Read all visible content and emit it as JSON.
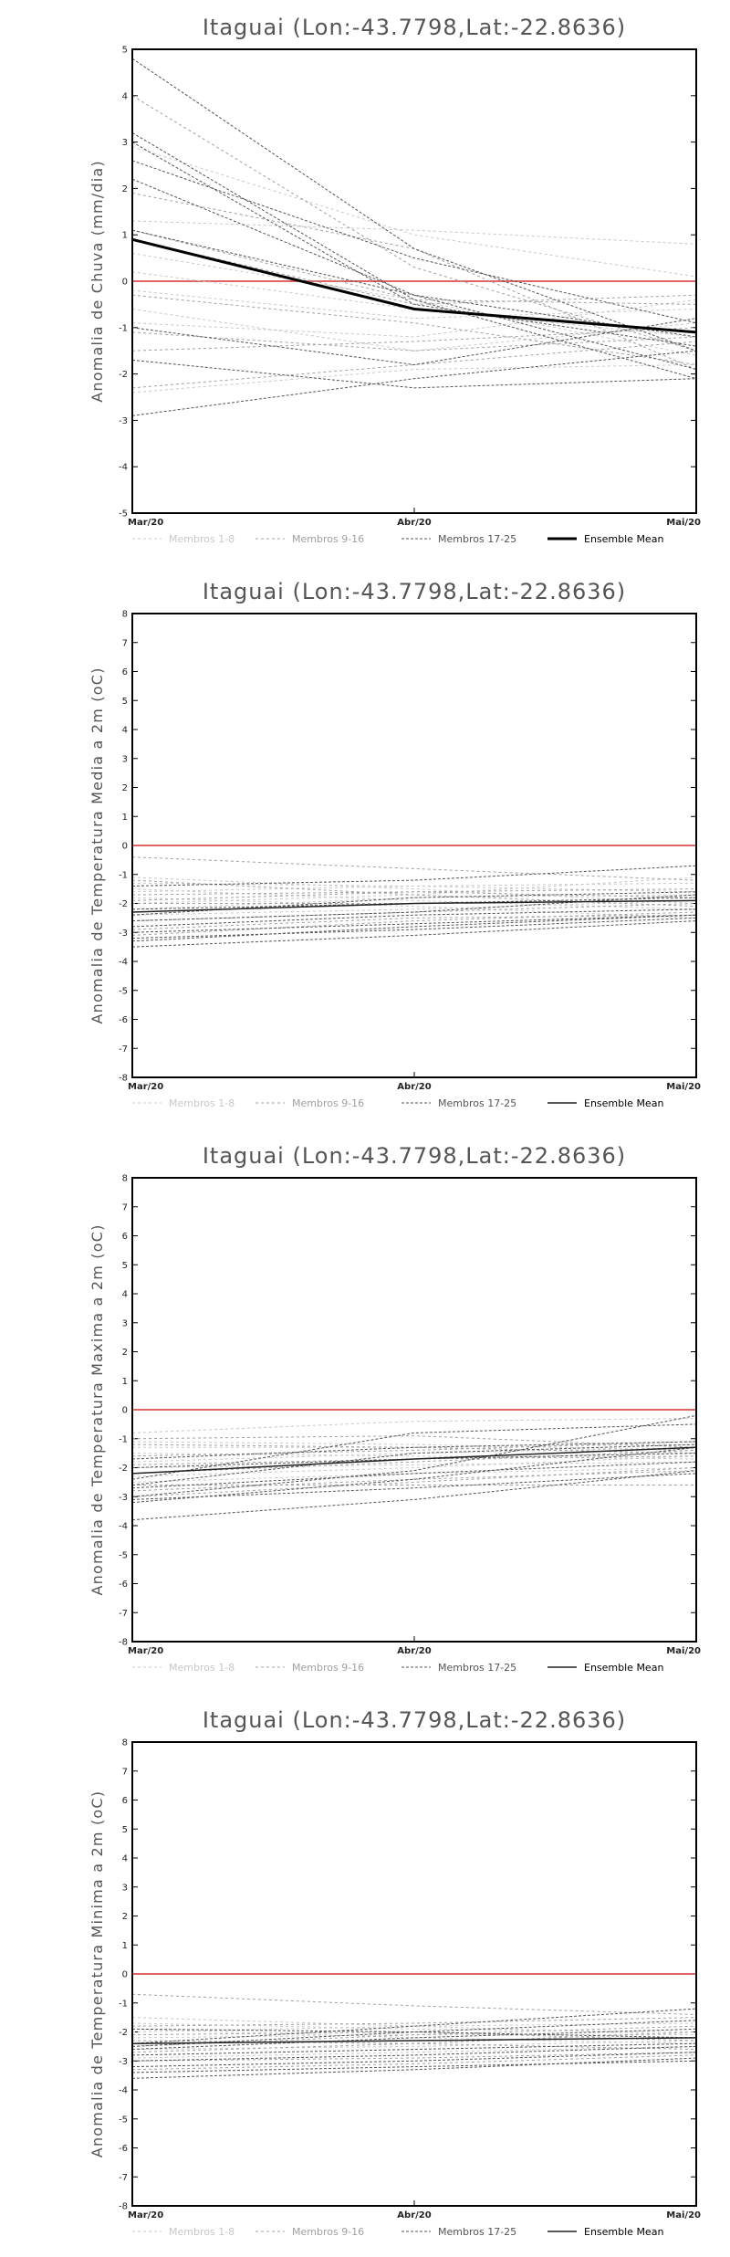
{
  "chart_data": [
    {
      "type": "line",
      "title": "Itaguai (Lon:-43.7798,Lat:-22.8636)",
      "ylabel": "Anomalia de Chuva (mm/dia)",
      "categories": [
        "Mar/20",
        "Abr/20",
        "Mai/20"
      ],
      "ylim": [
        -5,
        5
      ],
      "yticks": [
        -5,
        -4,
        -3,
        -2,
        -1,
        0,
        1,
        2,
        3,
        4,
        5
      ],
      "reference_line": {
        "y": 0,
        "color": "#e06666"
      },
      "legend": [
        {
          "label": "Membros 1-8",
          "color": "#c8c8c8",
          "dash": "3,3",
          "width": 1
        },
        {
          "label": "Membros 9-16",
          "color": "#a0a0a0",
          "dash": "3,3",
          "width": 1
        },
        {
          "label": "Membros 17-25",
          "color": "#555555",
          "dash": "3,2",
          "width": 1
        },
        {
          "label": "Ensemble Mean",
          "color": "#000000",
          "dash": "",
          "width": 3
        }
      ],
      "members": [
        {
          "group": 0,
          "values": [
            0.2,
            -0.6,
            -1.2
          ]
        },
        {
          "group": 0,
          "values": [
            -0.9,
            -1.2,
            -0.4
          ]
        },
        {
          "group": 0,
          "values": [
            1.3,
            1.1,
            0.8
          ]
        },
        {
          "group": 0,
          "values": [
            -0.6,
            -1.5,
            -0.9
          ]
        },
        {
          "group": 0,
          "values": [
            2.9,
            1.0,
            0.1
          ]
        },
        {
          "group": 0,
          "values": [
            -2.4,
            -1.9,
            -1.8
          ]
        },
        {
          "group": 0,
          "values": [
            0.6,
            -0.4,
            -1.6
          ]
        },
        {
          "group": 0,
          "values": [
            -0.2,
            -0.8,
            -0.6
          ]
        },
        {
          "group": 1,
          "values": [
            4.0,
            0.3,
            -1.5
          ]
        },
        {
          "group": 1,
          "values": [
            -1.1,
            -1.5,
            -1.2
          ]
        },
        {
          "group": 1,
          "values": [
            0.9,
            -0.5,
            -0.3
          ]
        },
        {
          "group": 1,
          "values": [
            1.9,
            0.7,
            -1.9
          ]
        },
        {
          "group": 1,
          "values": [
            -2.3,
            -1.8,
            -1.3
          ]
        },
        {
          "group": 1,
          "values": [
            -0.3,
            -0.9,
            -1.8
          ]
        },
        {
          "group": 1,
          "values": [
            1.1,
            -0.4,
            -0.5
          ]
        },
        {
          "group": 1,
          "values": [
            -1.5,
            -1.3,
            -1.0
          ]
        },
        {
          "group": 2,
          "values": [
            4.8,
            0.7,
            -1.5
          ]
        },
        {
          "group": 2,
          "values": [
            3.2,
            -0.4,
            -2.1
          ]
        },
        {
          "group": 2,
          "values": [
            2.6,
            0.5,
            -0.9
          ]
        },
        {
          "group": 2,
          "values": [
            2.2,
            -0.3,
            -1.9
          ]
        },
        {
          "group": 2,
          "values": [
            1.1,
            -0.3,
            -1.2
          ]
        },
        {
          "group": 2,
          "values": [
            -1.7,
            -2.3,
            -2.1
          ]
        },
        {
          "group": 2,
          "values": [
            -2.9,
            -2.1,
            -1.5
          ]
        },
        {
          "group": 2,
          "values": [
            -1.0,
            -1.8,
            -0.8
          ]
        },
        {
          "group": 2,
          "values": [
            3.0,
            -0.5,
            -1.4
          ]
        }
      ],
      "ensemble_mean": [
        0.9,
        -0.6,
        -1.1
      ]
    },
    {
      "type": "line",
      "title": "Itaguai (Lon:-43.7798,Lat:-22.8636)",
      "ylabel": "Anomalia de Temperatura Media a 2m (oC)",
      "categories": [
        "Mar/20",
        "Abr/20",
        "Mai/20"
      ],
      "ylim": [
        -8,
        8
      ],
      "yticks": [
        -8,
        -7,
        -6,
        -5,
        -4,
        -3,
        -2,
        -1,
        0,
        1,
        2,
        3,
        4,
        5,
        6,
        7,
        8
      ],
      "reference_line": {
        "y": 0,
        "color": "#e06666"
      },
      "legend": [
        {
          "label": "Membros 1-8",
          "color": "#c8c8c8",
          "dash": "3,3",
          "width": 1
        },
        {
          "label": "Membros 9-16",
          "color": "#a0a0a0",
          "dash": "3,3",
          "width": 1
        },
        {
          "label": "Membros 17-25",
          "color": "#555555",
          "dash": "3,2",
          "width": 1
        },
        {
          "label": "Ensemble Mean",
          "color": "#222222",
          "dash": "",
          "width": 1.5
        }
      ],
      "members": [
        {
          "group": 0,
          "values": [
            -1.3,
            -1.4,
            -1.6
          ]
        },
        {
          "group": 0,
          "values": [
            -2.0,
            -1.7,
            -1.1
          ]
        },
        {
          "group": 0,
          "values": [
            -1.5,
            -1.9,
            -2.2
          ]
        },
        {
          "group": 0,
          "values": [
            -2.4,
            -2.2,
            -1.9
          ]
        },
        {
          "group": 0,
          "values": [
            -1.1,
            -1.5,
            -2.0
          ]
        },
        {
          "group": 0,
          "values": [
            -1.8,
            -2.1,
            -2.5
          ]
        },
        {
          "group": 0,
          "values": [
            -2.2,
            -1.8,
            -1.7
          ]
        },
        {
          "group": 0,
          "values": [
            -1.6,
            -1.4,
            -1.3
          ]
        },
        {
          "group": 1,
          "values": [
            -0.4,
            -0.8,
            -1.2
          ]
        },
        {
          "group": 1,
          "values": [
            -2.6,
            -2.3,
            -2.0
          ]
        },
        {
          "group": 1,
          "values": [
            -1.7,
            -1.6,
            -1.5
          ]
        },
        {
          "group": 1,
          "values": [
            -2.9,
            -2.5,
            -2.4
          ]
        },
        {
          "group": 1,
          "values": [
            -1.2,
            -1.7,
            -2.1
          ]
        },
        {
          "group": 1,
          "values": [
            -2.0,
            -2.0,
            -1.9
          ]
        },
        {
          "group": 1,
          "values": [
            -3.1,
            -2.6,
            -2.3
          ]
        },
        {
          "group": 1,
          "values": [
            -1.9,
            -1.6,
            -1.8
          ]
        },
        {
          "group": 2,
          "values": [
            -3.2,
            -2.9,
            -2.5
          ]
        },
        {
          "group": 2,
          "values": [
            -2.4,
            -1.8,
            -1.6
          ]
        },
        {
          "group": 2,
          "values": [
            -3.5,
            -3.1,
            -2.6
          ]
        },
        {
          "group": 2,
          "values": [
            -2.8,
            -2.4,
            -2.2
          ]
        },
        {
          "group": 2,
          "values": [
            -1.4,
            -1.2,
            -0.7
          ]
        },
        {
          "group": 2,
          "values": [
            -3.0,
            -2.7,
            -2.4
          ]
        },
        {
          "group": 2,
          "values": [
            -2.2,
            -2.0,
            -1.8
          ]
        },
        {
          "group": 2,
          "values": [
            -3.3,
            -2.8,
            -2.4
          ]
        },
        {
          "group": 2,
          "values": [
            -2.6,
            -2.3,
            -1.7
          ]
        }
      ],
      "ensemble_mean": [
        -2.3,
        -2.0,
        -1.9
      ]
    },
    {
      "type": "line",
      "title": "Itaguai (Lon:-43.7798,Lat:-22.8636)",
      "ylabel": "Anomalia de Temperatura Maxima a 2m (oC)",
      "categories": [
        "Mar/20",
        "Abr/20",
        "Mai/20"
      ],
      "ylim": [
        -8,
        8
      ],
      "yticks": [
        -8,
        -7,
        -6,
        -5,
        -4,
        -3,
        -2,
        -1,
        0,
        1,
        2,
        3,
        4,
        5,
        6,
        7,
        8
      ],
      "reference_line": {
        "y": 0,
        "color": "#e06666"
      },
      "legend": [
        {
          "label": "Membros 1-8",
          "color": "#c8c8c8",
          "dash": "3,3",
          "width": 1
        },
        {
          "label": "Membros 9-16",
          "color": "#a0a0a0",
          "dash": "3,3",
          "width": 1
        },
        {
          "label": "Membros 17-25",
          "color": "#555555",
          "dash": "3,2",
          "width": 1
        },
        {
          "label": "Ensemble Mean",
          "color": "#222222",
          "dash": "",
          "width": 1.5
        }
      ],
      "members": [
        {
          "group": 0,
          "values": [
            -0.8,
            -0.4,
            -0.3
          ]
        },
        {
          "group": 0,
          "values": [
            -1.5,
            -1.6,
            -1.7
          ]
        },
        {
          "group": 0,
          "values": [
            -2.0,
            -1.9,
            -1.8
          ]
        },
        {
          "group": 0,
          "values": [
            -1.1,
            -1.2,
            -1.4
          ]
        },
        {
          "group": 0,
          "values": [
            -2.5,
            -2.2,
            -2.0
          ]
        },
        {
          "group": 0,
          "values": [
            -1.8,
            -1.5,
            -1.3
          ]
        },
        {
          "group": 0,
          "values": [
            -2.3,
            -2.0,
            -1.6
          ]
        },
        {
          "group": 0,
          "values": [
            -1.3,
            -1.3,
            -1.2
          ]
        },
        {
          "group": 1,
          "values": [
            -1.2,
            -1.3,
            -1.5
          ]
        },
        {
          "group": 1,
          "values": [
            -2.8,
            -2.4,
            -2.1
          ]
        },
        {
          "group": 1,
          "values": [
            -1.6,
            -1.4,
            -1.1
          ]
        },
        {
          "group": 1,
          "values": [
            -3.0,
            -2.5,
            -2.0
          ]
        },
        {
          "group": 1,
          "values": [
            -2.2,
            -1.8,
            -1.4
          ]
        },
        {
          "group": 1,
          "values": [
            -1.9,
            -1.7,
            -1.6
          ]
        },
        {
          "group": 1,
          "values": [
            -2.6,
            -2.6,
            -2.6
          ]
        },
        {
          "group": 1,
          "values": [
            -1.0,
            -0.9,
            -1.3
          ]
        },
        {
          "group": 2,
          "values": [
            -3.8,
            -3.1,
            -2.1
          ]
        },
        {
          "group": 2,
          "values": [
            -3.2,
            -2.4,
            -1.3
          ]
        },
        {
          "group": 2,
          "values": [
            -2.6,
            -1.5,
            -1.2
          ]
        },
        {
          "group": 2,
          "values": [
            -3.0,
            -2.1,
            -0.2
          ]
        },
        {
          "group": 2,
          "values": [
            -2.4,
            -0.8,
            -0.5
          ]
        },
        {
          "group": 2,
          "values": [
            -1.7,
            -1.3,
            -1.1
          ]
        },
        {
          "group": 2,
          "values": [
            -3.1,
            -2.7,
            -2.2
          ]
        },
        {
          "group": 2,
          "values": [
            -2.0,
            -1.7,
            -1.5
          ]
        },
        {
          "group": 2,
          "values": [
            -2.7,
            -2.2,
            -1.8
          ]
        }
      ],
      "ensemble_mean": [
        -2.2,
        -1.7,
        -1.3
      ]
    },
    {
      "type": "line",
      "title": "Itaguai (Lon:-43.7798,Lat:-22.8636)",
      "ylabel": "Anomalia de Temperatura Minima a 2m (oC)",
      "categories": [
        "Mar/20",
        "Abr/20",
        "Mai/20"
      ],
      "ylim": [
        -8,
        8
      ],
      "yticks": [
        -8,
        -7,
        -6,
        -5,
        -4,
        -3,
        -2,
        -1,
        0,
        1,
        2,
        3,
        4,
        5,
        6,
        7,
        8
      ],
      "reference_line": {
        "y": 0,
        "color": "#e06666"
      },
      "legend": [
        {
          "label": "Membros 1-8",
          "color": "#c8c8c8",
          "dash": "3,3",
          "width": 1
        },
        {
          "label": "Membros 9-16",
          "color": "#a0a0a0",
          "dash": "3,3",
          "width": 1
        },
        {
          "label": "Membros 17-25",
          "color": "#555555",
          "dash": "3,2",
          "width": 1
        },
        {
          "label": "Ensemble Mean",
          "color": "#222222",
          "dash": "",
          "width": 1.5
        }
      ],
      "members": [
        {
          "group": 0,
          "values": [
            -1.7,
            -1.9,
            -2.0
          ]
        },
        {
          "group": 0,
          "values": [
            -2.4,
            -2.3,
            -2.2
          ]
        },
        {
          "group": 0,
          "values": [
            -2.0,
            -1.8,
            -1.7
          ]
        },
        {
          "group": 0,
          "values": [
            -2.9,
            -2.7,
            -2.5
          ]
        },
        {
          "group": 0,
          "values": [
            -1.9,
            -2.2,
            -2.4
          ]
        },
        {
          "group": 0,
          "values": [
            -2.6,
            -2.5,
            -2.3
          ]
        },
        {
          "group": 0,
          "values": [
            -2.2,
            -2.1,
            -2.1
          ]
        },
        {
          "group": 0,
          "values": [
            -1.5,
            -1.8,
            -2.1
          ]
        },
        {
          "group": 1,
          "values": [
            -0.7,
            -1.1,
            -1.4
          ]
        },
        {
          "group": 1,
          "values": [
            -2.5,
            -2.1,
            -1.8
          ]
        },
        {
          "group": 1,
          "values": [
            -3.0,
            -2.9,
            -2.7
          ]
        },
        {
          "group": 1,
          "values": [
            -2.1,
            -2.0,
            -2.3
          ]
        },
        {
          "group": 1,
          "values": [
            -1.8,
            -1.7,
            -1.5
          ]
        },
        {
          "group": 1,
          "values": [
            -3.3,
            -3.1,
            -2.8
          ]
        },
        {
          "group": 1,
          "values": [
            -2.3,
            -2.4,
            -2.6
          ]
        },
        {
          "group": 1,
          "values": [
            -2.7,
            -2.4,
            -2.0
          ]
        },
        {
          "group": 2,
          "values": [
            -3.4,
            -3.2,
            -3.0
          ]
        },
        {
          "group": 2,
          "values": [
            -2.4,
            -1.8,
            -1.2
          ]
        },
        {
          "group": 2,
          "values": [
            -3.6,
            -3.3,
            -2.9
          ]
        },
        {
          "group": 2,
          "values": [
            -2.8,
            -2.6,
            -2.4
          ]
        },
        {
          "group": 2,
          "values": [
            -2.5,
            -2.0,
            -1.6
          ]
        },
        {
          "group": 2,
          "values": [
            -3.2,
            -3.0,
            -2.7
          ]
        },
        {
          "group": 2,
          "values": [
            -1.9,
            -2.0,
            -2.2
          ]
        },
        {
          "group": 2,
          "values": [
            -2.6,
            -2.2,
            -1.9
          ]
        },
        {
          "group": 2,
          "values": [
            -3.0,
            -2.8,
            -2.5
          ]
        }
      ],
      "ensemble_mean": [
        -2.4,
        -2.3,
        -2.2
      ]
    }
  ]
}
